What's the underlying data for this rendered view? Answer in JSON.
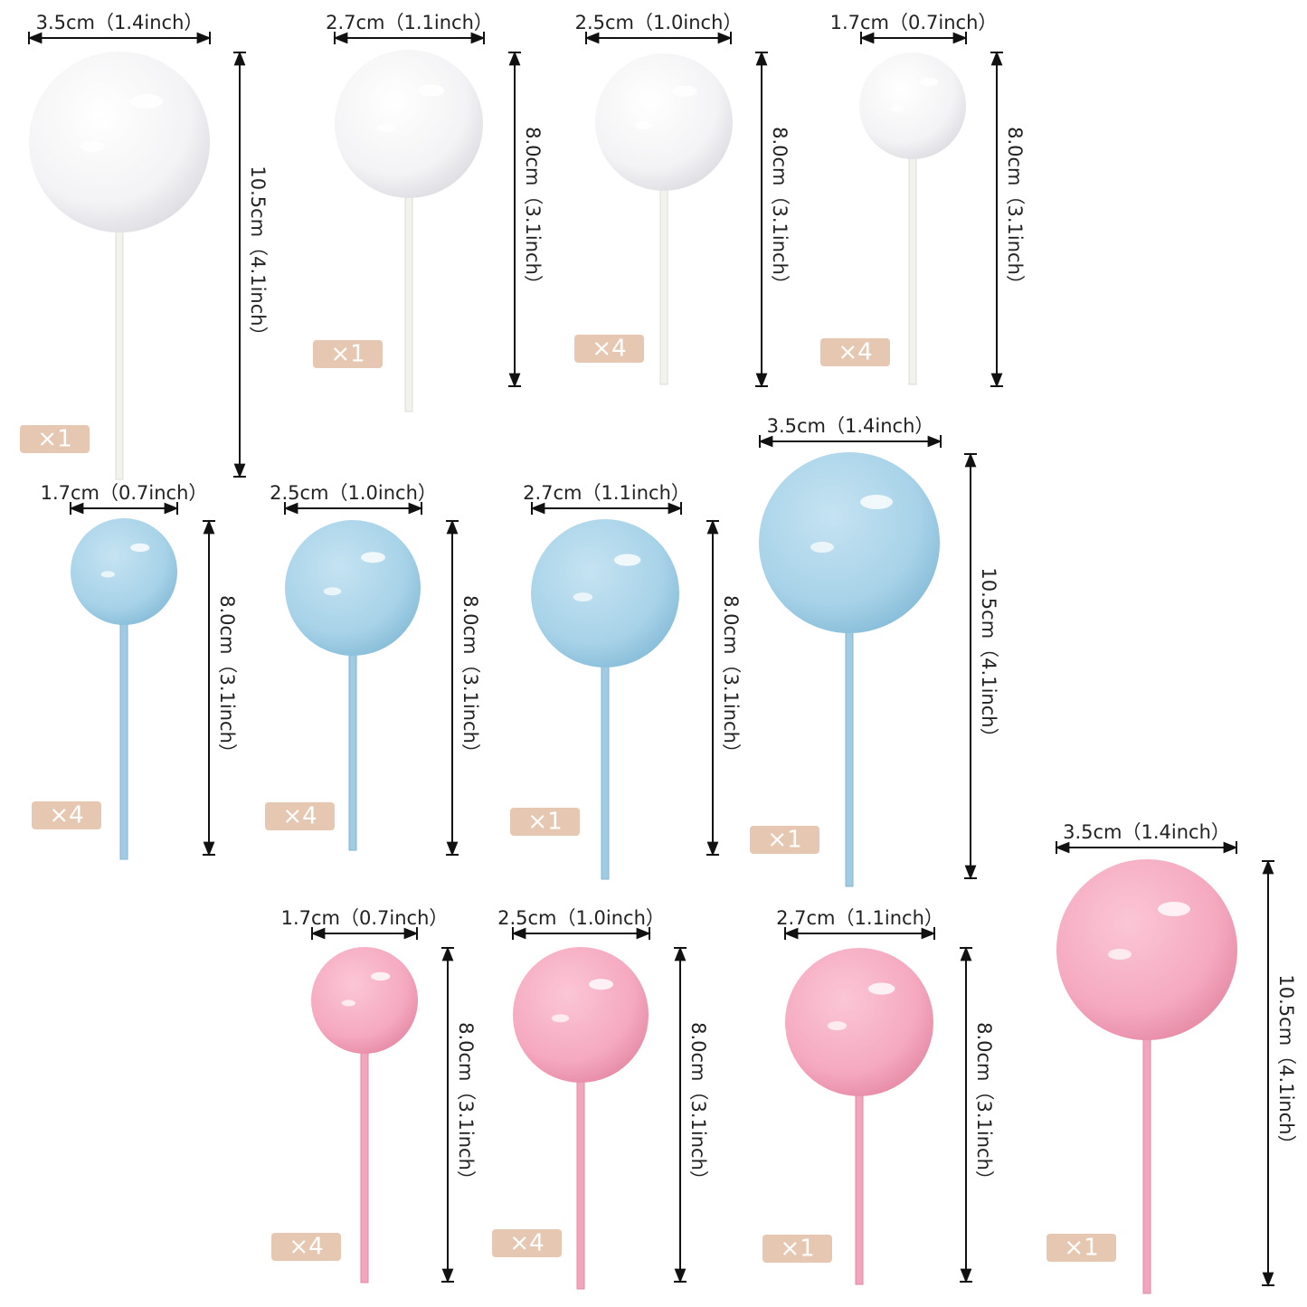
{
  "items": [
    {
      "width": "3.5cm（1.4inch）",
      "height": "10.5cm（4.1inch）",
      "quantity": "×1"
    },
    {
      "width": "2.7cm（1.1inch）",
      "height": "8.0cm（3.1inch）",
      "quantity": "×1"
    },
    {
      "width": "2.5cm（1.0inch）",
      "height": "8.0cm（3.1inch）",
      "quantity": "×4"
    },
    {
      "width": "1.7cm（0.7inch）",
      "height": "8.0cm（3.1inch）",
      "quantity": "×4"
    },
    {
      "width": "1.7cm（0.7inch）",
      "height": "8.0cm（3.1inch）",
      "quantity": "×4"
    },
    {
      "width": "2.5cm（1.0inch）",
      "height": "8.0cm（3.1inch）",
      "quantity": "×4"
    },
    {
      "width": "2.7cm（1.1inch）",
      "height": "8.0cm（3.1inch）",
      "quantity": "×1"
    },
    {
      "width": "3.5cm（1.4inch）",
      "height": "10.5cm（4.1inch）",
      "quantity": "×1"
    },
    {
      "width": "1.7cm（0.7inch）",
      "height": "8.0cm（3.1inch）",
      "quantity": "×4"
    },
    {
      "width": "2.5cm（1.0inch）",
      "height": "8.0cm（3.1inch）",
      "quantity": "×4"
    },
    {
      "width": "2.7cm（1.1inch）",
      "height": "8.0cm（3.1inch）",
      "quantity": "×1"
    },
    {
      "width": "3.5cm（1.4inch）",
      "height": "10.5cm（4.1inch）",
      "quantity": "×1"
    }
  ]
}
